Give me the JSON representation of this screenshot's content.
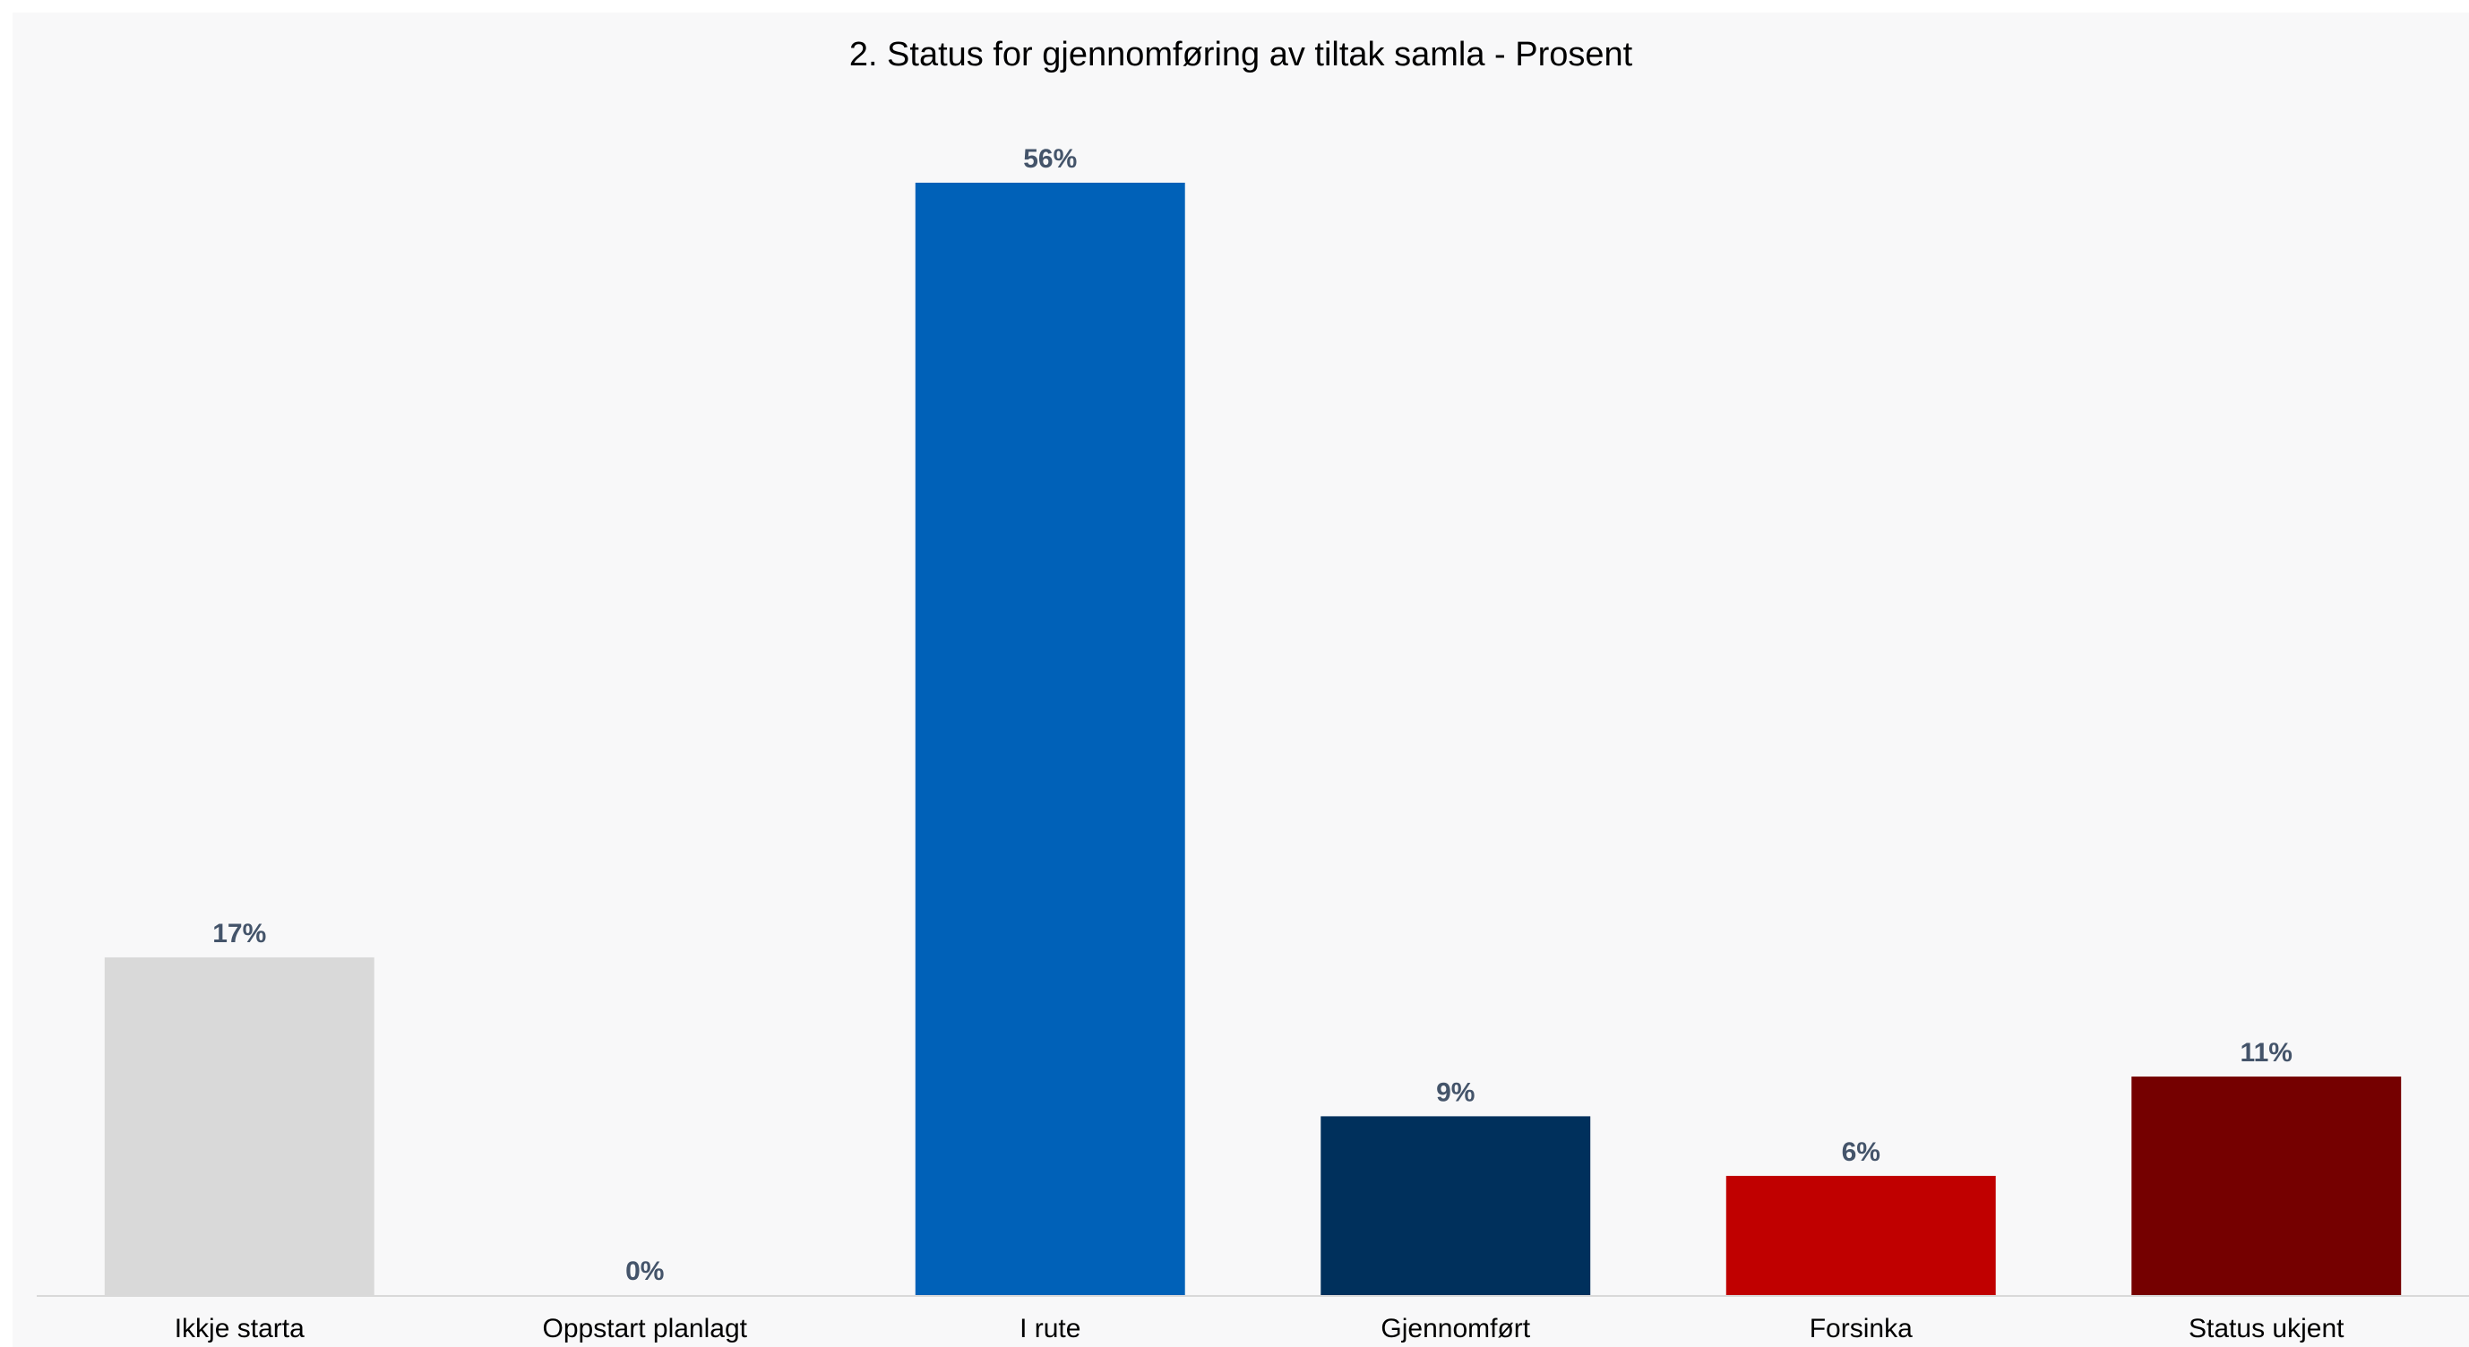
{
  "chart_data": {
    "type": "bar",
    "title": "2. Status for gjennomføring av tiltak samla - Prosent",
    "xlabel": "",
    "ylabel": "",
    "ylim": [
      0,
      56
    ],
    "grid": false,
    "legend": "none",
    "categories": [
      "Ikkje starta",
      "Oppstart planlagt",
      "I rute",
      "Gjennomført",
      "Forsinka",
      "Status ukjent"
    ],
    "values": [
      17,
      0,
      56,
      9,
      6,
      11
    ],
    "value_labels": [
      "17%",
      "0%",
      "56%",
      "9%",
      "6%",
      "11%"
    ],
    "colors": [
      "#d9d9d9",
      "#d9d9d9",
      "#0061b8",
      "#00305c",
      "#c00000",
      "#750000"
    ],
    "label_color": "#44546a",
    "axis_color": "#d9d9d9"
  }
}
